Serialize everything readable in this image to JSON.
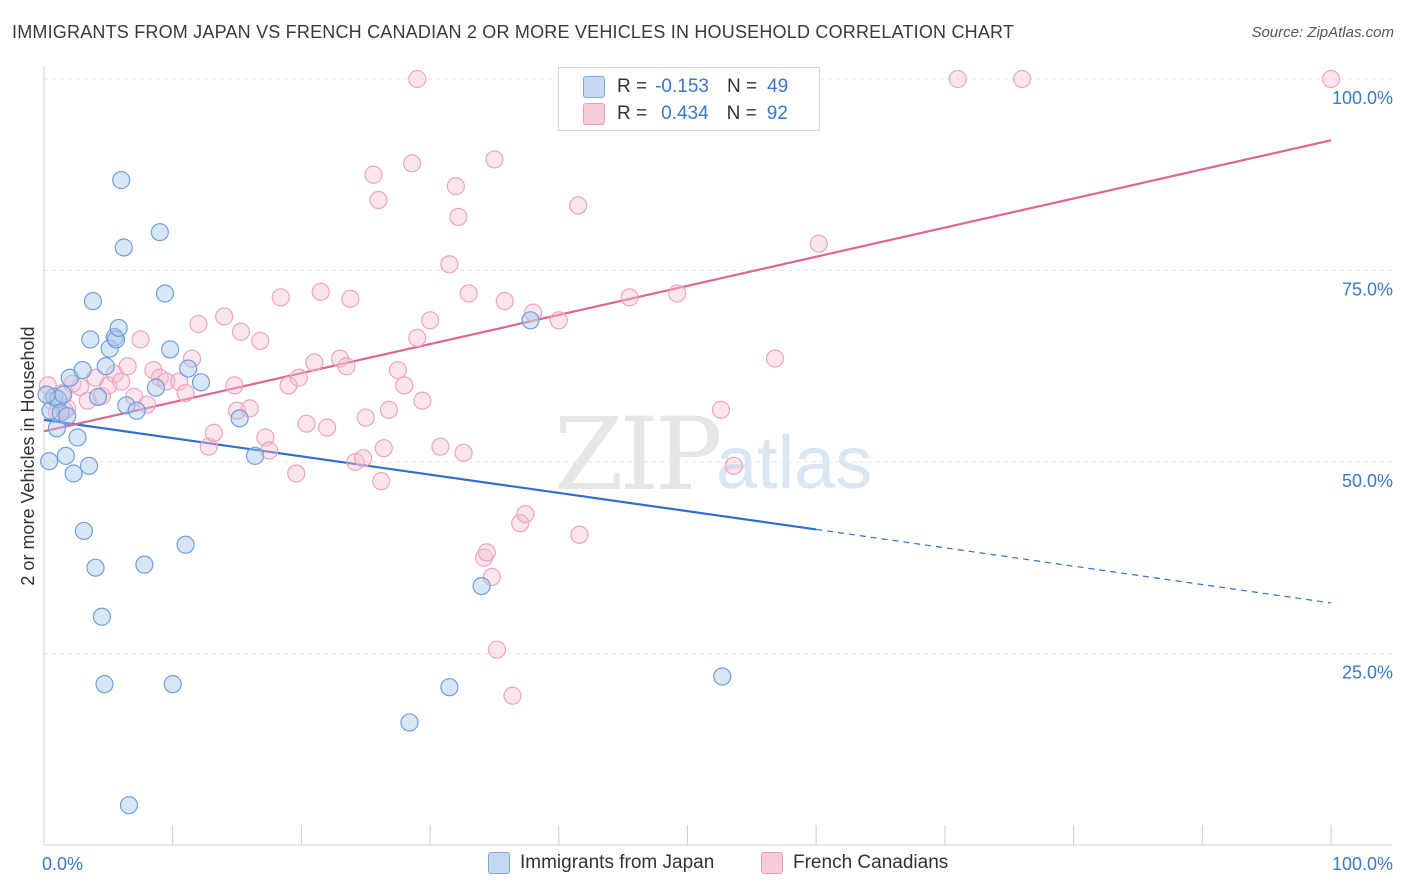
{
  "title": "IMMIGRANTS FROM JAPAN VS FRENCH CANADIAN 2 OR MORE VEHICLES IN HOUSEHOLD CORRELATION CHART",
  "source": "Source: ZipAtlas.com",
  "watermark": {
    "zip": "ZIP",
    "atlas": "atlas"
  },
  "colors": {
    "blue": "#6fa0dc",
    "blue_line": "#2f6fd0",
    "pink": "#f0a0bc",
    "pink_line": "#e0668f",
    "axis_label": "#3a78c9",
    "grid": "#e4e4e4"
  },
  "legend": {
    "rows": [
      {
        "r_label": "R =",
        "r_value": "-0.153",
        "n_label": "N =",
        "n_value": "49"
      },
      {
        "r_label": "R =",
        "r_value": "0.434",
        "n_label": "N =",
        "n_value": "92"
      }
    ]
  },
  "bottom_legend": [
    "Immigrants from Japan",
    "French Canadians"
  ],
  "chart_data": {
    "type": "scatter",
    "title": "IMMIGRANTS FROM JAPAN VS FRENCH CANADIAN 2 OR MORE VEHICLES IN HOUSEHOLD CORRELATION CHART",
    "xlabel": "",
    "ylabel": "2 or more Vehicles in Household",
    "xlim": [
      0,
      100
    ],
    "ylim": [
      0,
      100
    ],
    "x_tick_labels": [
      "0.0%",
      "100.0%"
    ],
    "y_tick_labels": [
      "25.0%",
      "50.0%",
      "75.0%",
      "100.0%"
    ],
    "y_ticks": [
      25,
      50,
      75,
      100
    ],
    "grid": true,
    "legend_position": "top-center",
    "series": [
      {
        "name": "Immigrants from Japan",
        "r": -0.153,
        "n": 49,
        "trend": {
          "x0": 0,
          "y0": 55.5,
          "x1": 60,
          "y1": 41.2,
          "dashed_to_x": 100,
          "dashed_to_y": 31.6
        },
        "points": [
          [
            0.4,
            50.1
          ],
          [
            0.5,
            56.7
          ],
          [
            0.8,
            58.5
          ],
          [
            1.0,
            54.4
          ],
          [
            1.1,
            58.2
          ],
          [
            1.3,
            56.4
          ],
          [
            1.7,
            50.8
          ],
          [
            1.8,
            56.0
          ],
          [
            2.0,
            61.0
          ],
          [
            2.3,
            48.5
          ],
          [
            2.6,
            53.2
          ],
          [
            3.0,
            62.0
          ],
          [
            3.1,
            41.0
          ],
          [
            3.5,
            49.5
          ],
          [
            3.6,
            66.0
          ],
          [
            3.8,
            71.0
          ],
          [
            4.0,
            36.2
          ],
          [
            4.2,
            58.5
          ],
          [
            4.5,
            29.8
          ],
          [
            4.7,
            21.0
          ],
          [
            4.8,
            62.5
          ],
          [
            5.1,
            64.8
          ],
          [
            5.5,
            66.3
          ],
          [
            5.6,
            66.0
          ],
          [
            5.8,
            67.5
          ],
          [
            6.0,
            86.8
          ],
          [
            6.2,
            78.0
          ],
          [
            6.4,
            57.4
          ],
          [
            6.6,
            5.2
          ],
          [
            7.2,
            56.7
          ],
          [
            7.8,
            36.6
          ],
          [
            8.7,
            59.7
          ],
          [
            9.0,
            80.0
          ],
          [
            9.4,
            72.0
          ],
          [
            9.8,
            64.7
          ],
          [
            10.0,
            21.0
          ],
          [
            11.0,
            39.2
          ],
          [
            11.2,
            62.2
          ],
          [
            12.2,
            60.4
          ],
          [
            15.2,
            55.7
          ],
          [
            16.4,
            50.8
          ],
          [
            28.4,
            16.0
          ],
          [
            31.5,
            20.6
          ],
          [
            34.0,
            33.8
          ],
          [
            37.8,
            68.5
          ],
          [
            43.0,
            100.0
          ],
          [
            52.7,
            22.0
          ],
          [
            0.2,
            58.8
          ],
          [
            1.5,
            58.8
          ]
        ]
      },
      {
        "name": "French Canadians",
        "r": 0.434,
        "n": 92,
        "trend": {
          "x0": 0,
          "y0": 54.0,
          "x1": 100,
          "y1": 92.0
        },
        "points": [
          [
            0.3,
            60.0
          ],
          [
            0.6,
            58.0
          ],
          [
            1.0,
            56.5
          ],
          [
            1.4,
            59.0
          ],
          [
            1.8,
            57.0
          ],
          [
            2.2,
            60.2
          ],
          [
            2.8,
            59.8
          ],
          [
            3.4,
            58.0
          ],
          [
            4.0,
            61.0
          ],
          [
            4.5,
            58.6
          ],
          [
            5.0,
            60.0
          ],
          [
            5.5,
            61.5
          ],
          [
            6.0,
            60.5
          ],
          [
            6.5,
            62.5
          ],
          [
            7.0,
            58.5
          ],
          [
            7.5,
            66.0
          ],
          [
            8.0,
            57.5
          ],
          [
            8.5,
            62.0
          ],
          [
            9.0,
            61.0
          ],
          [
            9.5,
            60.5
          ],
          [
            10.5,
            60.5
          ],
          [
            11.0,
            59.0
          ],
          [
            11.5,
            63.5
          ],
          [
            12.0,
            68.0
          ],
          [
            12.8,
            52.0
          ],
          [
            13.2,
            53.8
          ],
          [
            14.0,
            69.0
          ],
          [
            14.8,
            60.0
          ],
          [
            15.0,
            56.7
          ],
          [
            15.3,
            67.0
          ],
          [
            16.0,
            57.0
          ],
          [
            16.8,
            65.8
          ],
          [
            17.2,
            53.2
          ],
          [
            17.5,
            51.5
          ],
          [
            18.4,
            71.5
          ],
          [
            19.0,
            60.0
          ],
          [
            19.6,
            48.5
          ],
          [
            19.8,
            61.0
          ],
          [
            20.4,
            55.0
          ],
          [
            21.0,
            63.0
          ],
          [
            21.5,
            72.2
          ],
          [
            22.0,
            54.5
          ],
          [
            23.0,
            63.5
          ],
          [
            23.5,
            62.5
          ],
          [
            23.8,
            71.3
          ],
          [
            24.2,
            50.0
          ],
          [
            24.8,
            50.5
          ],
          [
            25.0,
            55.8
          ],
          [
            25.6,
            87.5
          ],
          [
            26.0,
            84.2
          ],
          [
            26.2,
            47.5
          ],
          [
            26.4,
            51.8
          ],
          [
            26.8,
            56.8
          ],
          [
            27.5,
            62.0
          ],
          [
            28.0,
            60.0
          ],
          [
            28.6,
            89.0
          ],
          [
            29.0,
            66.2
          ],
          [
            29.4,
            58.0
          ],
          [
            30.0,
            68.5
          ],
          [
            30.8,
            52.0
          ],
          [
            31.5,
            75.8
          ],
          [
            32.0,
            86.0
          ],
          [
            32.2,
            82.0
          ],
          [
            32.6,
            51.2
          ],
          [
            33.0,
            72.0
          ],
          [
            34.2,
            37.5
          ],
          [
            34.4,
            38.2
          ],
          [
            34.8,
            35.0
          ],
          [
            35.0,
            89.5
          ],
          [
            35.2,
            25.5
          ],
          [
            35.8,
            71.0
          ],
          [
            36.4,
            19.5
          ],
          [
            37.0,
            42.0
          ],
          [
            37.4,
            43.2
          ],
          [
            38.0,
            69.5
          ],
          [
            40.0,
            68.5
          ],
          [
            41.5,
            83.5
          ],
          [
            41.6,
            40.5
          ],
          [
            45.5,
            71.5
          ],
          [
            47.0,
            100.0
          ],
          [
            48.0,
            100.0
          ],
          [
            49.2,
            72.0
          ],
          [
            52.6,
            56.8
          ],
          [
            53.6,
            49.5
          ],
          [
            56.8,
            63.5
          ],
          [
            59.5,
            100.0
          ],
          [
            60.2,
            78.5
          ],
          [
            71.0,
            100.0
          ],
          [
            76.0,
            100.0
          ],
          [
            100.0,
            100.0
          ],
          [
            29.0,
            100.0
          ],
          [
            1.6,
            56.7
          ]
        ]
      }
    ]
  }
}
